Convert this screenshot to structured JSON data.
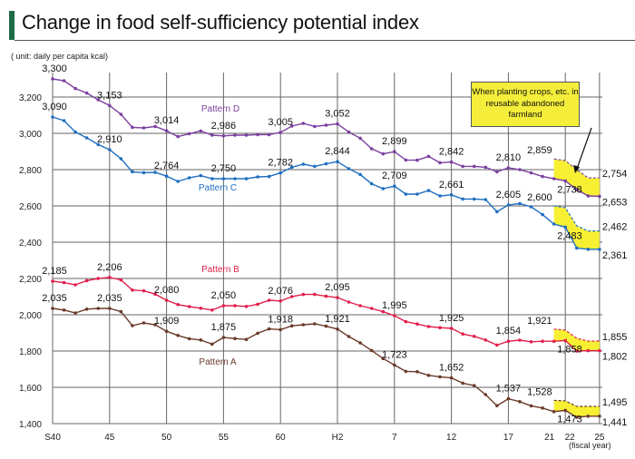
{
  "header": {
    "title": "Change in food self-sufficiency potential index",
    "accent_color": "#1f6b45"
  },
  "unit_note": "( unit: daily per capita kcal)",
  "annotation": "When planting crops, etc. in reusable abandoned farmland",
  "chart_data": {
    "type": "line",
    "title": "Change in food self-sufficiency potential index",
    "ylabel": "( unit: daily per capita kcal)",
    "xlabel": "(fiscal year)",
    "ylim": [
      1400,
      3300
    ],
    "yticks": [
      "1,400",
      "1,600",
      "1,800",
      "2,000",
      "2,200",
      "2,400",
      "2,600",
      "2,800",
      "3,000",
      "3,200"
    ],
    "ytick_values": [
      1400,
      1600,
      1800,
      2000,
      2200,
      2400,
      2600,
      2800,
      3000,
      3200
    ],
    "grid": true,
    "x": [
      "S40",
      "S41",
      "S42",
      "S43",
      "S44",
      "S45",
      "S46",
      "S47",
      "S48",
      "S49",
      "S50",
      "S51",
      "S52",
      "S53",
      "S54",
      "S55",
      "S56",
      "S57",
      "S58",
      "S59",
      "S60",
      "S61",
      "S62",
      "S63",
      "H1",
      "H2",
      "H3",
      "H4",
      "H5",
      "H6",
      "H7",
      "H8",
      "H9",
      "H10",
      "H11",
      "H12",
      "H13",
      "H14",
      "H15",
      "H16",
      "H17",
      "H18",
      "H19",
      "H20",
      "H21",
      "H22",
      "H23",
      "H24",
      "H25"
    ],
    "xticks": [
      {
        "x": "S40",
        "label": "S40"
      },
      {
        "x": "S45",
        "label": "45"
      },
      {
        "x": "S50",
        "label": "50"
      },
      {
        "x": "S55",
        "label": "55"
      },
      {
        "x": "S60",
        "label": "60"
      },
      {
        "x": "H2",
        "label": "H2"
      },
      {
        "x": "H7",
        "label": "7"
      },
      {
        "x": "H12",
        "label": "12"
      },
      {
        "x": "H17",
        "label": "17"
      },
      {
        "x": "H21",
        "label": "21"
      },
      {
        "x": "H22",
        "label": "22"
      },
      {
        "x": "H25",
        "label": "25"
      }
    ],
    "band_x": [
      "H21",
      "H22",
      "H23",
      "H24",
      "H25"
    ],
    "band_color": "#f7f032",
    "series": [
      {
        "name": "Pattern D",
        "color": "#7b3fa0",
        "values": [
          3300,
          3290,
          3247,
          3222,
          3185,
          3153,
          3105,
          3033,
          3030,
          3038,
          3014,
          2982,
          2998,
          3013,
          2990,
          2986,
          2990,
          2990,
          2993,
          2993,
          3005,
          3040,
          3055,
          3038,
          3045,
          3052,
          3007,
          2973,
          2915,
          2887,
          2899,
          2853,
          2852,
          2873,
          2838,
          2842,
          2818,
          2818,
          2813,
          2788,
          2810,
          2800,
          2782,
          2762,
          2750,
          2738,
          2690,
          2655,
          2653
        ],
        "upper": [
          2859,
          2850,
          2800,
          2754,
          2754
        ]
      },
      {
        "name": "Pattern C",
        "color": "#1f6fc0",
        "values": [
          3090,
          3070,
          3007,
          2975,
          2938,
          2910,
          2860,
          2788,
          2783,
          2785,
          2764,
          2735,
          2755,
          2767,
          2750,
          2750,
          2750,
          2750,
          2760,
          2762,
          2782,
          2813,
          2830,
          2818,
          2832,
          2844,
          2805,
          2773,
          2722,
          2695,
          2709,
          2665,
          2665,
          2685,
          2655,
          2661,
          2638,
          2638,
          2635,
          2568,
          2605,
          2613,
          2595,
          2552,
          2500,
          2483,
          2368,
          2361,
          2361
        ],
        "upper": [
          2600,
          2590,
          2490,
          2462,
          2462
        ]
      },
      {
        "name": "Pattern B",
        "color": "#e0204a",
        "values": [
          2185,
          2177,
          2165,
          2188,
          2200,
          2206,
          2192,
          2136,
          2132,
          2114,
          2080,
          2056,
          2045,
          2036,
          2026,
          2050,
          2050,
          2046,
          2058,
          2080,
          2076,
          2100,
          2112,
          2112,
          2102,
          2095,
          2070,
          2050,
          2035,
          2017,
          1995,
          1962,
          1949,
          1935,
          1929,
          1925,
          1894,
          1881,
          1861,
          1833,
          1854,
          1860,
          1851,
          1854,
          1854,
          1858,
          1800,
          1802,
          1802
        ],
        "upper": [
          1921,
          1915,
          1870,
          1855,
          1855
        ]
      },
      {
        "name": "Pattern A",
        "color": "#6b3a2a",
        "values": [
          2035,
          2026,
          2010,
          2031,
          2035,
          2035,
          2017,
          1940,
          1955,
          1945,
          1909,
          1886,
          1868,
          1861,
          1838,
          1875,
          1869,
          1864,
          1898,
          1922,
          1918,
          1939,
          1945,
          1950,
          1937,
          1921,
          1880,
          1845,
          1803,
          1759,
          1723,
          1688,
          1686,
          1666,
          1658,
          1652,
          1623,
          1610,
          1560,
          1499,
          1537,
          1521,
          1498,
          1486,
          1466,
          1473,
          1435,
          1441,
          1441
        ],
        "upper": [
          1528,
          1525,
          1495,
          1495,
          1495
        ]
      }
    ],
    "data_labels": [
      {
        "series": 0,
        "x": "S40",
        "text": "3,300",
        "band": "main"
      },
      {
        "series": 0,
        "x": "S45",
        "text": "3,153",
        "band": "main"
      },
      {
        "series": 0,
        "x": "S50",
        "text": "3,014",
        "band": "main"
      },
      {
        "series": 0,
        "x": "S55",
        "text": "2,986",
        "band": "main"
      },
      {
        "series": 0,
        "x": "S60",
        "text": "3,005",
        "band": "main"
      },
      {
        "series": 0,
        "x": "H2",
        "text": "3,052",
        "band": "main"
      },
      {
        "series": 0,
        "x": "H7",
        "text": "2,899",
        "band": "main"
      },
      {
        "series": 0,
        "x": "H12",
        "text": "2,842",
        "band": "main"
      },
      {
        "series": 0,
        "x": "H17",
        "text": "2,810",
        "band": "main"
      },
      {
        "series": 0,
        "x": "H21",
        "text": "2,859",
        "band": "upper"
      },
      {
        "series": 0,
        "x": "H22",
        "text": "2,738",
        "band": "lower"
      },
      {
        "series": 0,
        "x": "H25",
        "text": "2,754",
        "band": "upper"
      },
      {
        "series": 0,
        "x": "H25",
        "text": "2,653",
        "band": "lower"
      },
      {
        "series": 1,
        "x": "S40",
        "text": "3,090",
        "band": "main"
      },
      {
        "series": 1,
        "x": "S45",
        "text": "2,910",
        "band": "main"
      },
      {
        "series": 1,
        "x": "S50",
        "text": "2,764",
        "band": "main"
      },
      {
        "series": 1,
        "x": "S55",
        "text": "2,750",
        "band": "main"
      },
      {
        "series": 1,
        "x": "S60",
        "text": "2,782",
        "band": "main"
      },
      {
        "series": 1,
        "x": "H2",
        "text": "2,844",
        "band": "main"
      },
      {
        "series": 1,
        "x": "H7",
        "text": "2,709",
        "band": "main"
      },
      {
        "series": 1,
        "x": "H12",
        "text": "2,661",
        "band": "main"
      },
      {
        "series": 1,
        "x": "H17",
        "text": "2,605",
        "band": "main"
      },
      {
        "series": 1,
        "x": "H21",
        "text": "2,600",
        "band": "upper"
      },
      {
        "series": 1,
        "x": "H22",
        "text": "2,483",
        "band": "lower"
      },
      {
        "series": 1,
        "x": "H25",
        "text": "2,462",
        "band": "upper"
      },
      {
        "series": 1,
        "x": "H25",
        "text": "2,361",
        "band": "lower"
      },
      {
        "series": 2,
        "x": "S40",
        "text": "2,185",
        "band": "main"
      },
      {
        "series": 2,
        "x": "S45",
        "text": "2,206",
        "band": "main"
      },
      {
        "series": 2,
        "x": "S50",
        "text": "2,080",
        "band": "main"
      },
      {
        "series": 2,
        "x": "S55",
        "text": "2,050",
        "band": "main"
      },
      {
        "series": 2,
        "x": "S60",
        "text": "2,076",
        "band": "main"
      },
      {
        "series": 2,
        "x": "H2",
        "text": "2,095",
        "band": "main"
      },
      {
        "series": 2,
        "x": "H7",
        "text": "1,995",
        "band": "main"
      },
      {
        "series": 2,
        "x": "H12",
        "text": "1,925",
        "band": "main"
      },
      {
        "series": 2,
        "x": "H17",
        "text": "1,854",
        "band": "main"
      },
      {
        "series": 2,
        "x": "H21",
        "text": "1,921",
        "band": "upper"
      },
      {
        "series": 2,
        "x": "H22",
        "text": "1,858",
        "band": "lower"
      },
      {
        "series": 2,
        "x": "H25",
        "text": "1,855",
        "band": "upper"
      },
      {
        "series": 2,
        "x": "H25",
        "text": "1,802",
        "band": "lower"
      },
      {
        "series": 3,
        "x": "S40",
        "text": "2,035",
        "band": "main"
      },
      {
        "series": 3,
        "x": "S45",
        "text": "2,035",
        "band": "main"
      },
      {
        "series": 3,
        "x": "S50",
        "text": "1,909",
        "band": "main"
      },
      {
        "series": 3,
        "x": "S55",
        "text": "1,875",
        "band": "main"
      },
      {
        "series": 3,
        "x": "S60",
        "text": "1,918",
        "band": "main"
      },
      {
        "series": 3,
        "x": "H2",
        "text": "1,921",
        "band": "main"
      },
      {
        "series": 3,
        "x": "H7",
        "text": "1,723",
        "band": "main"
      },
      {
        "series": 3,
        "x": "H12",
        "text": "1,652",
        "band": "main"
      },
      {
        "series": 3,
        "x": "H17",
        "text": "1,537",
        "band": "main"
      },
      {
        "series": 3,
        "x": "H21",
        "text": "1,528",
        "band": "upper"
      },
      {
        "series": 3,
        "x": "H22",
        "text": "1,473",
        "band": "lower"
      },
      {
        "series": 3,
        "x": "H25",
        "text": "1,495",
        "band": "upper"
      },
      {
        "series": 3,
        "x": "H25",
        "text": "1,441",
        "band": "lower"
      }
    ]
  }
}
